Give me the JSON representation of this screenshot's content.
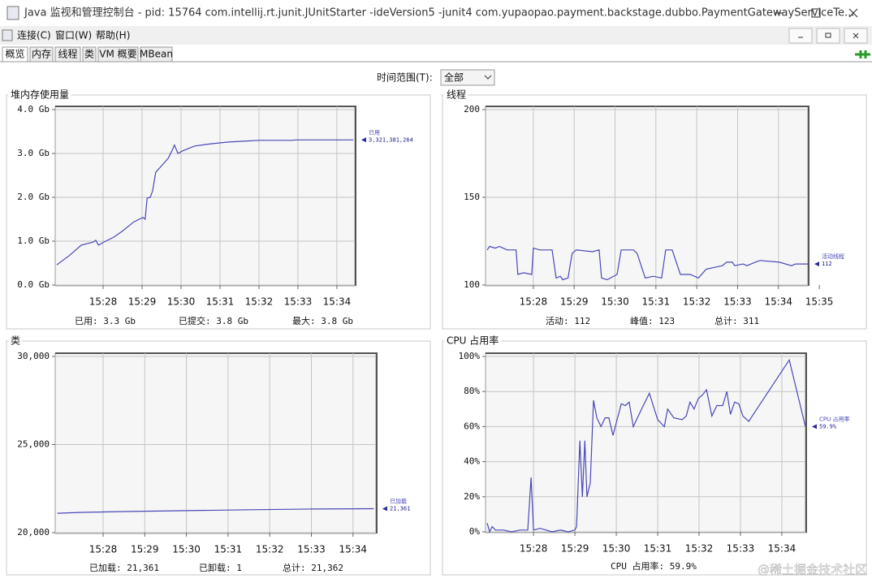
{
  "window": {
    "title": "Java 监视和管理控制台 - pid: 15764 com.intellij.rt.junit.JUnitStarter -ideVersion5 -junit4 com.yupaopao.payment.backstage.dubbo.PaymentGatewayServiceTe..."
  },
  "menu": [
    "连接(C)",
    "窗口(W)",
    "帮助(H)"
  ],
  "tabs": [
    "概览",
    "内存",
    "线程",
    "类",
    "VM 概要",
    "MBean"
  ],
  "time_range": {
    "label": "时间范围(T):",
    "value": "全部"
  },
  "chart_data": [
    {
      "type": "line",
      "title": "堆内存使用量",
      "x": [
        26.81,
        27.13,
        27.44,
        27.75,
        27.81,
        27.88,
        28.02,
        28.27,
        28.48,
        28.79,
        29.02,
        29.08,
        29.13,
        29.21,
        29.27,
        29.35,
        29.52,
        29.67,
        29.77,
        29.83,
        29.92,
        30.04,
        30.35,
        30.77,
        31.19,
        31.6,
        32.02,
        32.85,
        32.96,
        34.42
      ],
      "series": [
        {
          "name": "已用",
          "color": "#4848b8",
          "values": [
            0.46,
            0.67,
            0.91,
            0.98,
            1.02,
            0.91,
            0.98,
            1.09,
            1.22,
            1.44,
            1.54,
            1.5,
            1.98,
            2.0,
            2.15,
            2.57,
            2.74,
            2.89,
            3.07,
            3.19,
            3.0,
            3.06,
            3.17,
            3.22,
            3.26,
            3.28,
            3.3,
            3.3,
            3.31,
            3.31
          ]
        }
      ],
      "end_label": "3,321,381,264",
      "xlim": [
        26.77,
        34.46
      ],
      "xticks": [
        {
          "value": 28,
          "label": "15:28"
        },
        {
          "value": 29,
          "label": "15:29"
        },
        {
          "value": 30,
          "label": "15:30"
        },
        {
          "value": 31,
          "label": "15:31"
        },
        {
          "value": 32,
          "label": "15:32"
        },
        {
          "value": 33,
          "label": "15:33"
        },
        {
          "value": 34,
          "label": "15:34"
        }
      ],
      "ylim": [
        0,
        4
      ],
      "yticks": [
        {
          "value": 0,
          "label": "0.0 Gb"
        },
        {
          "value": 1,
          "label": "1.0 Gb"
        },
        {
          "value": 2,
          "label": "2.0 Gb"
        },
        {
          "value": 3,
          "label": "3.0 Gb"
        },
        {
          "value": 4,
          "label": "4.0 Gb"
        }
      ],
      "grid": true,
      "footer": [
        "已用:  3.3  Gb",
        "已提交:  3.8  Gb",
        "最大:  3.8  Gb"
      ]
    },
    {
      "type": "line",
      "title": "线程",
      "x": [
        26.87,
        26.93,
        27.07,
        27.17,
        27.26,
        27.36,
        27.58,
        27.62,
        27.76,
        27.96,
        28.0,
        28.16,
        28.46,
        28.56,
        28.66,
        28.72,
        28.85,
        28.95,
        29.05,
        29.45,
        29.61,
        29.67,
        29.81,
        30.05,
        30.15,
        30.45,
        30.54,
        30.74,
        30.94,
        31.14,
        31.24,
        31.4,
        31.6,
        31.84,
        32.04,
        32.23,
        32.63,
        32.73,
        32.87,
        32.93,
        33.13,
        33.23,
        33.43,
        33.55,
        34.02,
        34.32,
        34.42,
        34.72
      ],
      "series": [
        {
          "name": "活动线程",
          "color": "#4848b8",
          "values": [
            120,
            122,
            121,
            122,
            121,
            120,
            120,
            106,
            107,
            106,
            121,
            120,
            120,
            104,
            105,
            103,
            104,
            118,
            120,
            119,
            120,
            104,
            103,
            106,
            120,
            120,
            118,
            104,
            105,
            104,
            120,
            120,
            106,
            106,
            104,
            109,
            111,
            113,
            113,
            111,
            112,
            111,
            113,
            114,
            113,
            111,
            112,
            112
          ]
        }
      ],
      "end_label": "112",
      "xlim": [
        26.83,
        34.72
      ],
      "xticks": [
        {
          "value": 28,
          "label": "15:28"
        },
        {
          "value": 29,
          "label": "15:29"
        },
        {
          "value": 30,
          "label": "15:30"
        },
        {
          "value": 31,
          "label": "15:31"
        },
        {
          "value": 32,
          "label": "15:32"
        },
        {
          "value": 33,
          "label": "15:33"
        },
        {
          "value": 34,
          "label": "15:34"
        },
        {
          "value": 35,
          "label": "15:35"
        }
      ],
      "ylim": [
        100,
        200
      ],
      "yticks": [
        100,
        150,
        200
      ],
      "grid": true,
      "footer": [
        "活动:  112",
        "峰值:  123",
        "总计:  311"
      ]
    },
    {
      "type": "line",
      "title": "类",
      "x": [
        26.9,
        27.5,
        28.5,
        30,
        31.5,
        33,
        34.5
      ],
      "series": [
        {
          "name": "已加载",
          "color": "#4848b8",
          "values": [
            21100,
            21150,
            21200,
            21250,
            21300,
            21340,
            21361
          ]
        }
      ],
      "end_label": "21,361",
      "xlim": [
        26.85,
        34.55
      ],
      "xticks": [
        {
          "value": 28,
          "label": "15:28"
        },
        {
          "value": 29,
          "label": "15:29"
        },
        {
          "value": 30,
          "label": "15:30"
        },
        {
          "value": 31,
          "label": "15:31"
        },
        {
          "value": 32,
          "label": "15:32"
        },
        {
          "value": 33,
          "label": "15:33"
        },
        {
          "value": 34,
          "label": "15:34"
        }
      ],
      "ylim": [
        20000,
        30000
      ],
      "yticks": [
        {
          "value": 20000,
          "label": "20,000"
        },
        {
          "value": 25000,
          "label": "25,000"
        },
        {
          "value": 30000,
          "label": "30,000"
        }
      ],
      "grid": true,
      "footer": [
        "已加载:  21,361",
        "已卸载:  1",
        "总计:  21,362"
      ]
    },
    {
      "type": "line",
      "title": "CPU 占用率",
      "x": [
        26.88,
        26.94,
        27.0,
        27.08,
        27.27,
        27.47,
        27.67,
        27.86,
        27.94,
        28.0,
        28.16,
        28.45,
        28.65,
        28.84,
        29.0,
        29.04,
        29.12,
        29.18,
        29.24,
        29.29,
        29.37,
        29.45,
        29.53,
        29.63,
        29.73,
        29.82,
        29.92,
        30.12,
        30.22,
        30.31,
        30.41,
        30.61,
        30.8,
        31.0,
        31.16,
        31.24,
        31.39,
        31.59,
        31.69,
        31.78,
        31.88,
        31.98,
        32.08,
        32.18,
        32.31,
        32.43,
        32.57,
        32.67,
        32.76,
        32.86,
        32.96,
        33.06,
        33.2,
        34.18,
        34.57
      ],
      "series": [
        {
          "name": "CPU 占用率",
          "color": "#4848b8",
          "values": [
            5,
            0,
            3,
            1,
            1,
            0,
            1,
            1,
            31,
            1,
            2,
            0,
            1,
            0,
            1,
            3,
            52,
            20,
            52,
            20,
            28,
            75,
            65,
            60,
            65,
            65,
            55,
            73,
            72,
            74,
            60,
            70,
            79,
            64,
            60,
            70,
            65,
            64,
            66,
            74,
            70,
            76,
            78,
            81,
            66,
            72,
            72,
            80,
            67,
            74,
            73,
            66,
            63,
            98,
            60
          ]
        }
      ],
      "end_label": "59.9%",
      "xlim": [
        26.84,
        34.57
      ],
      "xticks": [
        {
          "value": 28,
          "label": "15:28"
        },
        {
          "value": 29,
          "label": "15:29"
        },
        {
          "value": 30,
          "label": "15:30"
        },
        {
          "value": 31,
          "label": "15:31"
        },
        {
          "value": 32,
          "label": "15:32"
        },
        {
          "value": 33,
          "label": "15:33"
        },
        {
          "value": 34,
          "label": "15:34"
        }
      ],
      "ylim": [
        0,
        100
      ],
      "yticks": [
        {
          "value": 0,
          "label": "0%"
        },
        {
          "value": 20,
          "label": "20%"
        },
        {
          "value": 40,
          "label": "40%"
        },
        {
          "value": 60,
          "label": "60%"
        },
        {
          "value": 80,
          "label": "80%"
        },
        {
          "value": 100,
          "label": "100%"
        }
      ],
      "grid": true,
      "footer": [
        "CPU 占用率:  59.9%"
      ]
    }
  ],
  "watermark": "@稀土掘金技术社区"
}
